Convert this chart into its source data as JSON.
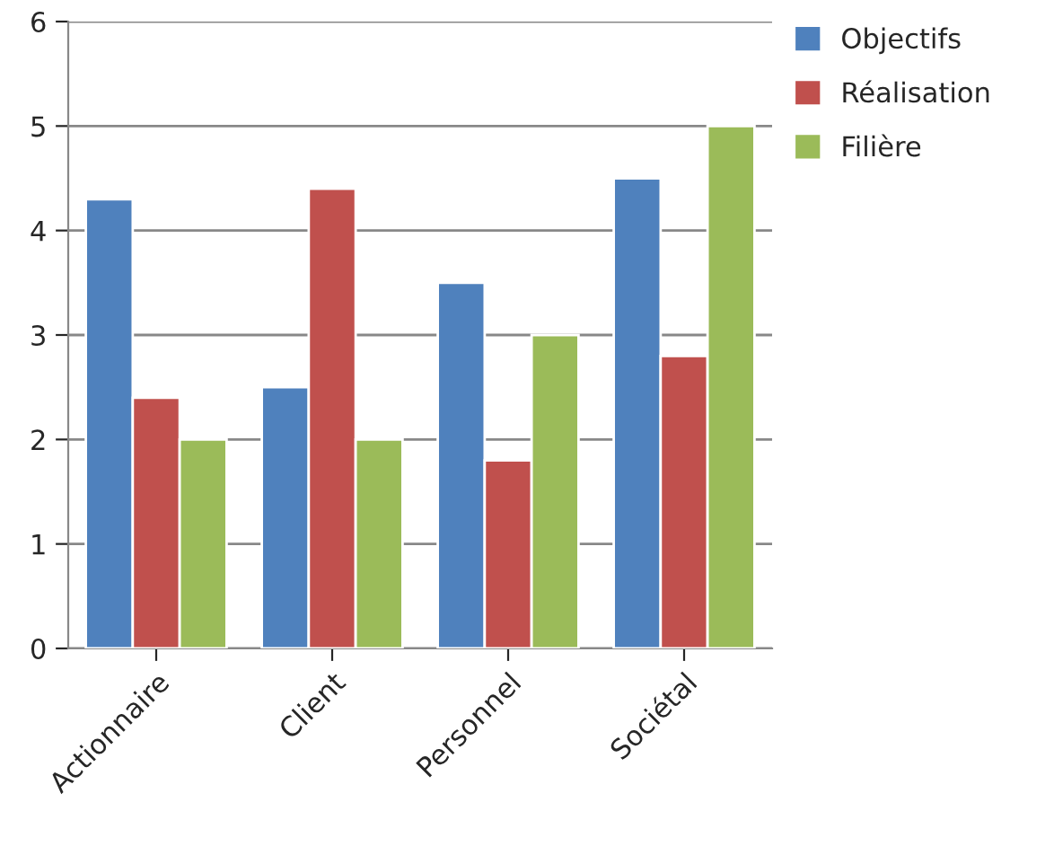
{
  "chart_data": {
    "type": "bar",
    "categories": [
      "Actionnaire",
      "Client",
      "Personnel",
      "Sociétal"
    ],
    "series": [
      {
        "name": "Objectifs",
        "color": "#4f81bd",
        "values": [
          4.3,
          2.5,
          3.5,
          4.5
        ]
      },
      {
        "name": "Réalisation",
        "color": "#c0504d",
        "values": [
          2.4,
          4.4,
          1.8,
          2.8
        ]
      },
      {
        "name": "Filière",
        "color": "#9bbb59",
        "values": [
          2.0,
          2.0,
          3.0,
          5.0
        ]
      }
    ],
    "ylim": [
      0,
      6
    ],
    "yticks": [
      0,
      1,
      2,
      3,
      4,
      5,
      6
    ],
    "grid": "y",
    "legend": "top right"
  }
}
